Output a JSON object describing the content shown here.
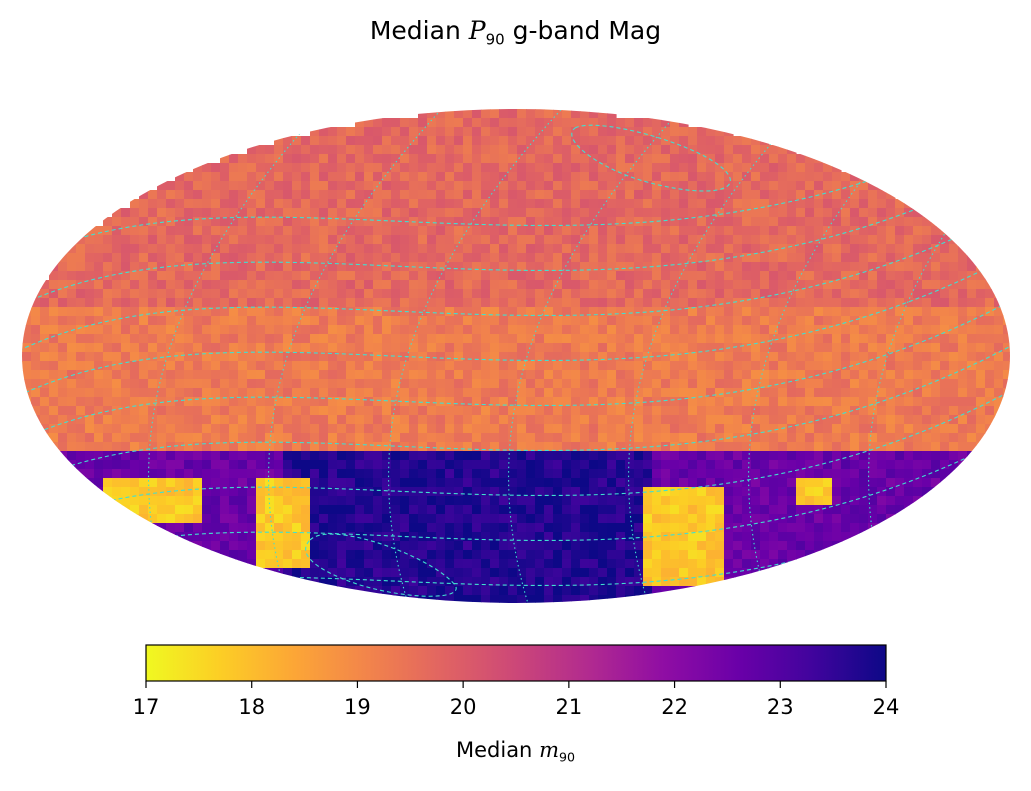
{
  "chart_data": {
    "type": "heatmap",
    "projection": "mollweide",
    "title_main": "Median",
    "title_symbol": "P",
    "title_sub": "90",
    "title_rest": "g-band Mag",
    "colorbar": {
      "colormap": "plasma",
      "reversed": true,
      "range": [
        17,
        24
      ],
      "ticks": [
        17,
        18,
        19,
        20,
        21,
        22,
        23,
        24
      ],
      "label_main": "Median",
      "label_symbol": "m",
      "label_sub": "90",
      "orientation": "horizontal"
    },
    "overlays": [
      {
        "style": "dashed",
        "color": "#40e0d0"
      },
      {
        "style": "dotted",
        "color": "#40e0d0"
      }
    ],
    "regions": [
      {
        "area": "northern sky",
        "value": 19.7
      },
      {
        "area": "mid latitudes",
        "value": 19.3
      },
      {
        "area": "south-central gap",
        "value": 23.7
      },
      {
        "area": "southern edges",
        "value": 22.6
      },
      {
        "area": "bright patches",
        "value": 17.8
      }
    ]
  }
}
